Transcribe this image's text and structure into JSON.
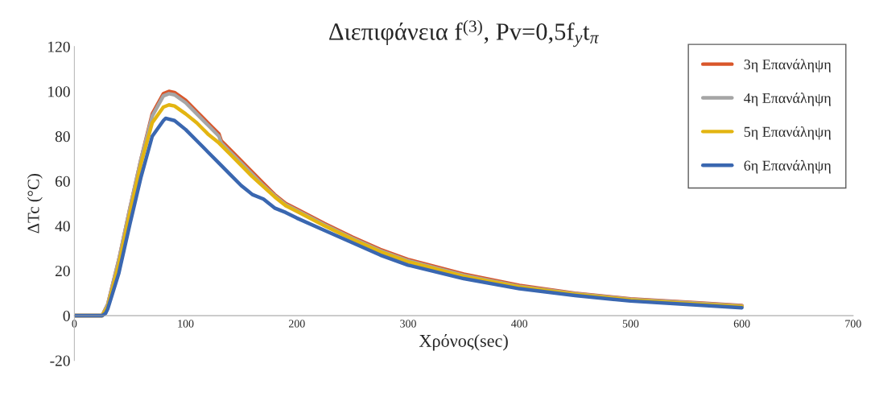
{
  "chart_data": {
    "type": "line",
    "title": "Διεπιφάνεια f$^{(3)}$, Pv=0,5f$_{y}$t$_{π}$",
    "xlabel": "Χρόνος(sec)",
    "ylabel": "ΔTc (°C)",
    "xlim": [
      0,
      700
    ],
    "xticks": [
      0,
      100,
      200,
      300,
      400,
      500,
      600,
      700
    ],
    "ylim": [
      -20,
      120
    ],
    "yticks": [
      -20,
      0,
      20,
      40,
      60,
      80,
      100,
      120
    ],
    "grid": false,
    "legend": "top right",
    "marker": "none",
    "line_style": "solid",
    "series": [
      {
        "name": "3η Επανάληψη",
        "color": "#d9562a",
        "x": [
          0,
          20,
          25,
          30,
          40,
          50,
          60,
          70,
          80,
          85,
          90,
          100,
          110,
          120,
          130,
          132,
          140,
          150,
          160,
          170,
          180,
          190,
          200,
          225,
          250,
          275,
          300,
          350,
          400,
          450,
          500,
          550,
          600
        ],
        "values": [
          0,
          0,
          0,
          5,
          25,
          48,
          70,
          90,
          99,
          100,
          99.5,
          96,
          91,
          86,
          81,
          78,
          74,
          69,
          64,
          59,
          54,
          50,
          47.5,
          41,
          35,
          29.5,
          25,
          18.5,
          13.5,
          10,
          7.5,
          6,
          4.5
        ]
      },
      {
        "name": "4η Επανάληψη",
        "color": "#a5a5a5",
        "x": [
          0,
          20,
          25,
          30,
          40,
          50,
          60,
          70,
          80,
          85,
          90,
          100,
          110,
          120,
          130,
          132,
          140,
          150,
          160,
          170,
          180,
          190,
          200,
          225,
          250,
          275,
          300,
          350,
          400,
          450,
          500,
          550,
          600
        ],
        "values": [
          0,
          0,
          0,
          5,
          25,
          48,
          70,
          89,
          98,
          99,
          98.5,
          95,
          90,
          85,
          80,
          77,
          73,
          68,
          63,
          58,
          53.5,
          49.5,
          47,
          40.5,
          34.5,
          29,
          24.5,
          18,
          13,
          9.8,
          7.3,
          5.8,
          4.3
        ]
      },
      {
        "name": "5η Επανάληψη",
        "color": "#e3b511",
        "x": [
          0,
          20,
          25,
          30,
          40,
          50,
          60,
          70,
          80,
          85,
          90,
          100,
          110,
          120,
          130,
          140,
          150,
          160,
          170,
          180,
          190,
          200,
          225,
          250,
          275,
          300,
          350,
          400,
          450,
          500,
          550,
          600
        ],
        "values": [
          0,
          0,
          0,
          4,
          23,
          46,
          68,
          86,
          93,
          94,
          93.5,
          90,
          86,
          81,
          77,
          72,
          67,
          62,
          57.5,
          53,
          49,
          46.5,
          40,
          34,
          28.5,
          24,
          17.5,
          12.8,
          9.5,
          7,
          5.5,
          4
        ]
      },
      {
        "name": "6η Επανάληψη",
        "color": "#3a67b0",
        "x": [
          0,
          20,
          25,
          28,
          30,
          40,
          50,
          60,
          70,
          80,
          82,
          90,
          100,
          110,
          120,
          130,
          140,
          150,
          155,
          160,
          170,
          180,
          190,
          200,
          225,
          250,
          275,
          300,
          350,
          400,
          450,
          500,
          550,
          600
        ],
        "values": [
          0,
          0,
          0,
          1,
          3,
          19,
          41,
          62,
          80,
          87,
          88,
          87,
          83,
          78,
          73,
          68,
          63,
          58,
          56,
          54,
          52,
          48,
          46,
          43.5,
          38,
          32.5,
          27,
          22.5,
          16.5,
          12,
          9,
          6.5,
          5,
          3.5
        ]
      }
    ]
  }
}
